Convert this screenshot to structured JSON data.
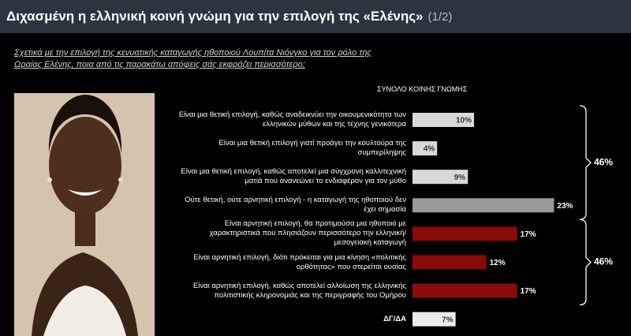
{
  "chart_data": {
    "type": "bar",
    "orientation": "horizontal",
    "title": "Διχασμένη η ελληνική κοινή γνώμη για την επιλογή της «Ελένης»",
    "page": "(1/2)",
    "subtitle": "Σχετικά με την επιλογή της κενυατικής καταγωγής ηθοποιού Λουπίτα Νιόνγκο για τον ρόλο της Ωραίας Ελένης, ποια από τις παρακάτω απόψεις σάς εκφράζει περισσότερο;",
    "column_header": "ΣΥΝΟΛΟ ΚΟΙΝΗΣ ΓΝΩΜΗΣ",
    "categories": [
      "Είναι μια θετική επιλογή, καθώς αναδεικνύει την οικουμενικότητα των ελληνικών μύθων και της τέχνης γενικότερα",
      "Είναι μια θετική επιλογή γιατί προάγει την κουλτούρα της συμπερίληψης",
      "Είναι μια θετική επιλογή, καθώς αποτελεί μια σύγχρονη καλλιτεχνική ματιά που ανανεώνει το ενδιαφέρον για τον μύθο",
      "Ούτε θετική, ούτε αρνητική επιλογή - η καταγωγή της ηθοποιού δεν έχει σημασία",
      "Είναι αρνητική επιλογή, θα προτιμούσα μια ηθοποιό με χαρακτηριστικά που πλησιάζουν περισσότερο την ελληνική/μεσογειακή καταγωγή",
      "Είναι αρνητική επιλογή, διότι πρόκειται για μια κίνηση «πολιτικής ορθότητας» που στερείται ουσίας",
      "Είναι αρνητική επιλογή, καθώς αποτελεί αλλοίωση της ελληνικής πολιτιστικής κληρονομιάς και της περιγραφής του Ομήρου",
      "ΔΓ/ΔΑ"
    ],
    "values": [
      10,
      4,
      9,
      23,
      17,
      12,
      17,
      7
    ],
    "value_labels": [
      "10%",
      "4%",
      "9%",
      "23%",
      "17%",
      "12%",
      "17%",
      "7%"
    ],
    "colors": [
      "#d9d9d9",
      "#d9d9d9",
      "#d9d9d9",
      "#9a9a9a",
      "#8b0a0a",
      "#8b0a0a",
      "#8b0a0a",
      "#ededed"
    ],
    "group_totals": {
      "values": [
        46,
        46
      ],
      "value_labels": [
        "46%",
        "46%"
      ]
    }
  }
}
